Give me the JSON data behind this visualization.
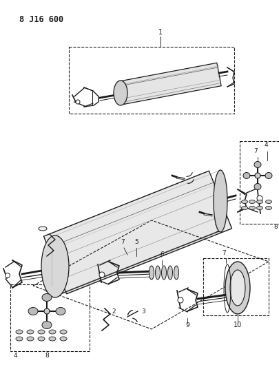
{
  "title": "8 J16 600",
  "bg_color": "#ffffff",
  "lc": "#1a1a1a",
  "figsize": [
    4.06,
    5.33
  ],
  "dpi": 100,
  "ax_aspect": "auto"
}
